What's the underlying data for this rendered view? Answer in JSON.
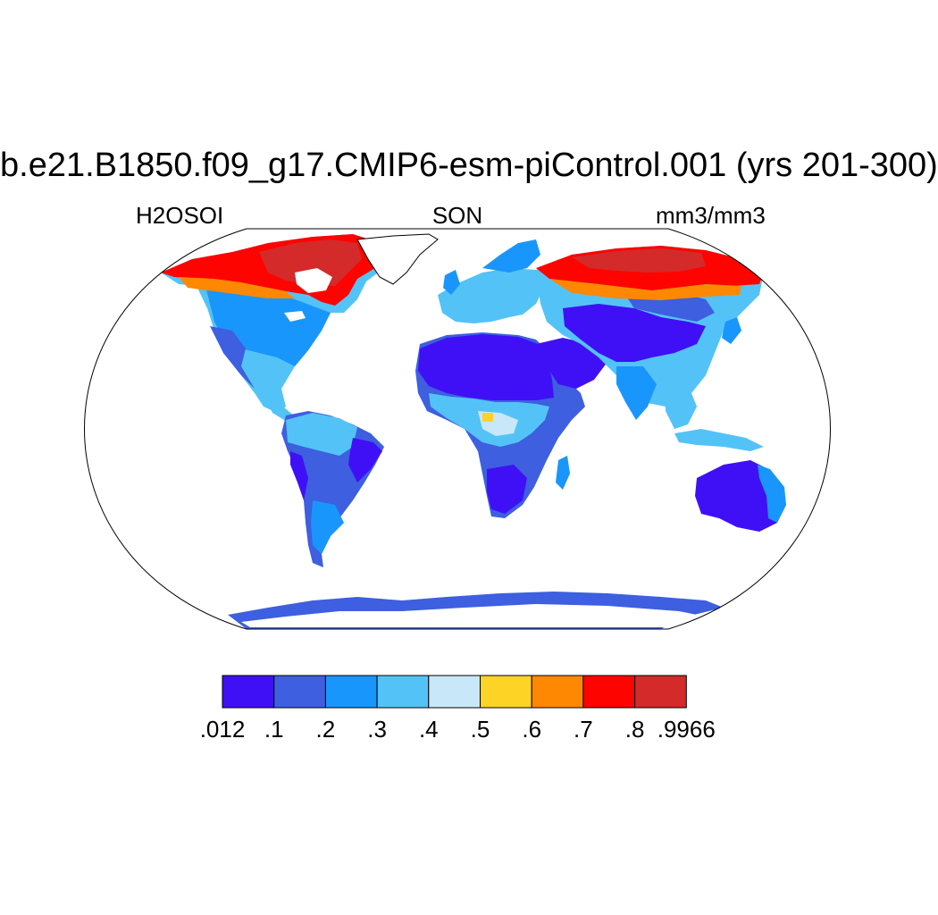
{
  "title": "b.e21.B1850.f09_g17.CMIP6-esm-piControl.001 (yrs 201-300)",
  "subtitle_left": "H2OSOI",
  "subtitle_center": "SON",
  "subtitle_right": "mm3/mm3",
  "colorbar": {
    "labels": [
      ".012",
      ".1",
      ".2",
      ".3",
      ".4",
      ".5",
      ".6",
      ".7",
      ".8",
      ".9966"
    ],
    "colors": [
      "#3f10f5",
      "#3d5fe0",
      "#1996fb",
      "#53c3f7",
      "#c8e7f8",
      "#fdd326",
      "#fe8802",
      "#fe0400",
      "#d42a2a"
    ]
  },
  "map_colors": {
    "ocean": "#ffffff",
    "coast": "#000000"
  }
}
